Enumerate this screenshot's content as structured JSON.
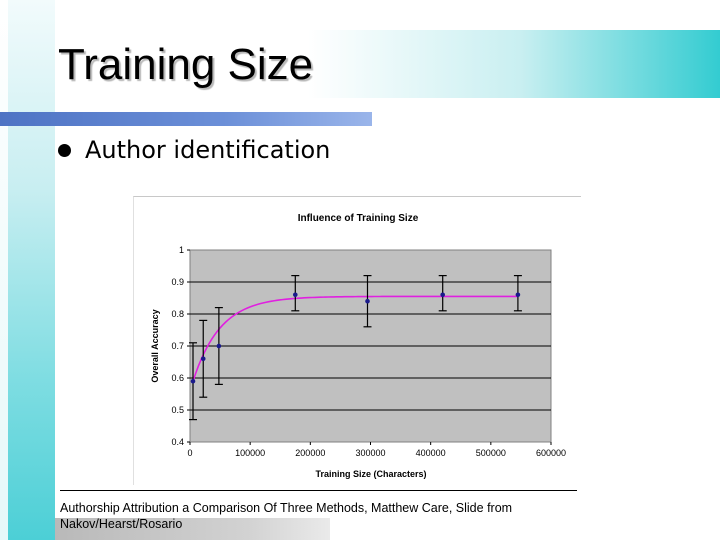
{
  "slide": {
    "title": "Training Size",
    "bullet": "Author identification",
    "citation_line1": "Authorship Attribution a Comparison Of Three Methods, Matthew Care, Slide from",
    "citation_line2": "Nakov/Hearst/Rosario"
  },
  "colors": {
    "plot_background": "#c0c0c0",
    "curve": "#e020e0",
    "points": "#1a1a8c",
    "title_underline": "#5b7fd0",
    "accent_teal": "#33ccd1"
  },
  "chart_data": {
    "type": "scatter",
    "title": "Influence of Training Size",
    "xlabel": "Training Size (Characters)",
    "ylabel": "Overall Accuracy",
    "xlim": [
      0,
      600000
    ],
    "ylim": [
      0.4,
      1.0
    ],
    "x_ticks": [
      "0",
      "100000",
      "200000",
      "300000",
      "400000",
      "500000",
      "600000"
    ],
    "y_ticks": [
      "0.4",
      "0.5",
      "0.6",
      "0.7",
      "0.8",
      "0.9",
      "1"
    ],
    "grid": "horizontal",
    "legend": "none",
    "series": [
      {
        "x": [
          5000,
          22000,
          48000,
          175000,
          295000,
          420000,
          545000
        ],
        "y": [
          0.59,
          0.66,
          0.7,
          0.86,
          0.84,
          0.86,
          0.86
        ],
        "err_low": [
          0.47,
          0.54,
          0.58,
          0.81,
          0.76,
          0.81,
          0.81
        ],
        "err_high": [
          0.71,
          0.78,
          0.82,
          0.92,
          0.92,
          0.92,
          0.92
        ]
      }
    ],
    "fit_curve": {
      "type": "exponential",
      "description_in_data_units": {
        "asymptote": 0.855,
        "start": 0.59,
        "rate_per_char": 2.2e-05
      }
    }
  }
}
